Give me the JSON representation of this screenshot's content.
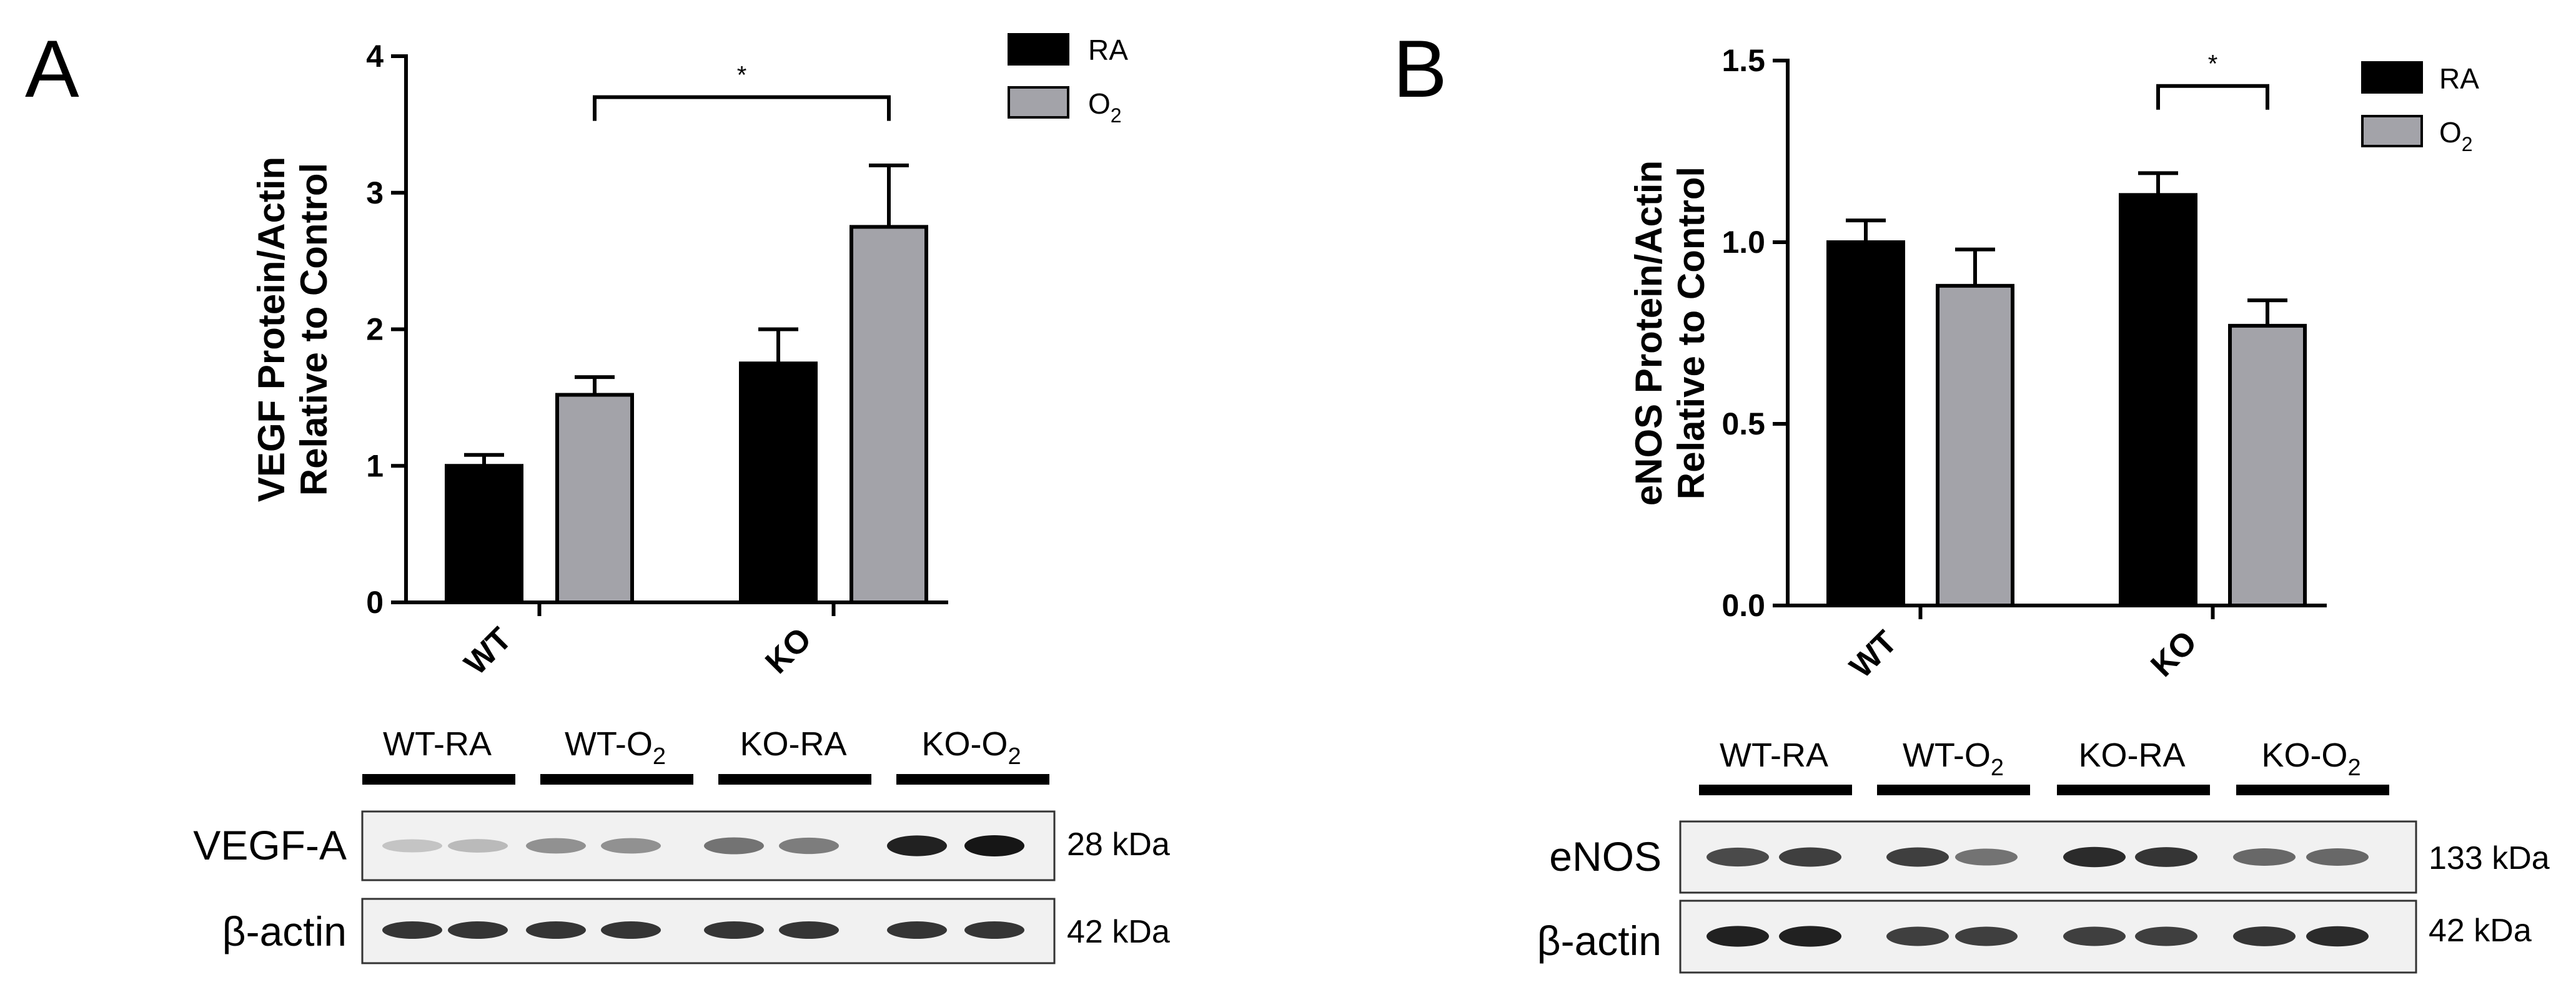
{
  "panels": [
    {
      "letter": "A",
      "legend": {
        "entries": [
          {
            "name": "RA",
            "color": "#000000"
          },
          {
            "name_base": "O",
            "name_sub": "2",
            "color": "#a3a3a9"
          }
        ]
      },
      "significance": {
        "mark": "*"
      },
      "blot": {
        "lanes": [
          {
            "base": "WT-RA",
            "sub": ""
          },
          {
            "base": "WT-O",
            "sub": "2"
          },
          {
            "base": "KO-RA",
            "sub": ""
          },
          {
            "base": "KO-O",
            "sub": "2"
          }
        ],
        "rows": [
          {
            "label": "VEGF-A",
            "kda": "28 kDa",
            "band_intensity": [
              0.15,
              0.2,
              0.4,
              0.4,
              0.55,
              0.5,
              0.95,
              1.0
            ]
          },
          {
            "label": "β-actin",
            "kda": "42 kDa",
            "band_intensity": [
              0.85,
              0.85,
              0.85,
              0.85,
              0.85,
              0.85,
              0.85,
              0.85
            ]
          }
        ]
      }
    },
    {
      "letter": "B",
      "legend": {
        "entries": [
          {
            "name": "RA",
            "color": "#000000"
          },
          {
            "name_base": "O",
            "name_sub": "2",
            "color": "#a3a3a9"
          }
        ]
      },
      "significance": {
        "mark": "*"
      },
      "blot": {
        "lanes": [
          {
            "base": "WT-RA",
            "sub": ""
          },
          {
            "base": "WT-O",
            "sub": "2"
          },
          {
            "base": "KO-RA",
            "sub": ""
          },
          {
            "base": "KO-O",
            "sub": "2"
          }
        ],
        "rows": [
          {
            "label": "eNOS",
            "kda": "133 kDa",
            "band_intensity": [
              0.75,
              0.8,
              0.8,
              0.55,
              0.9,
              0.85,
              0.6,
              0.6
            ]
          },
          {
            "label": "β-actin",
            "kda": "42 kDa",
            "band_intensity": [
              0.95,
              0.95,
              0.8,
              0.8,
              0.8,
              0.8,
              0.85,
              0.9
            ]
          }
        ]
      }
    }
  ],
  "chart_data": [
    {
      "type": "bar",
      "title": "",
      "ylabel_lines": [
        "VEGF Protein/Actin",
        "Relative to Control"
      ],
      "xlabel": "",
      "categories": [
        "WT",
        "KO"
      ],
      "ylim": [
        0,
        4
      ],
      "yticks": [
        0,
        1,
        2,
        3,
        4
      ],
      "ytick_labels": [
        "0",
        "1",
        "2",
        "3",
        "4"
      ],
      "grid": false,
      "legend_position": "top-right",
      "series": [
        {
          "name": "RA",
          "values": [
            1.0,
            1.75
          ],
          "errors": [
            0.08,
            0.25
          ]
        },
        {
          "name": "O2",
          "values": [
            1.52,
            2.75
          ],
          "errors": [
            0.13,
            0.45
          ]
        }
      ],
      "significance": {
        "from": [
          0,
          "O2"
        ],
        "to": [
          1,
          "O2"
        ],
        "label": "*",
        "y": 3.7
      }
    },
    {
      "type": "bar",
      "title": "",
      "ylabel_lines": [
        "eNOS Protein/Actin",
        "Relative to Control"
      ],
      "xlabel": "",
      "categories": [
        "WT",
        "KO"
      ],
      "ylim": [
        0,
        1.5
      ],
      "yticks": [
        0,
        0.5,
        1.0,
        1.5
      ],
      "ytick_labels": [
        "0.0",
        "0.5",
        "1.0",
        "1.5"
      ],
      "grid": false,
      "legend_position": "top-right",
      "series": [
        {
          "name": "RA",
          "values": [
            1.0,
            1.13
          ],
          "errors": [
            0.06,
            0.06
          ]
        },
        {
          "name": "O2",
          "values": [
            0.88,
            0.77
          ],
          "errors": [
            0.1,
            0.07
          ]
        }
      ],
      "significance": {
        "from": [
          1,
          "RA"
        ],
        "to": [
          1,
          "O2"
        ],
        "label": "*",
        "y": 1.43
      }
    }
  ]
}
